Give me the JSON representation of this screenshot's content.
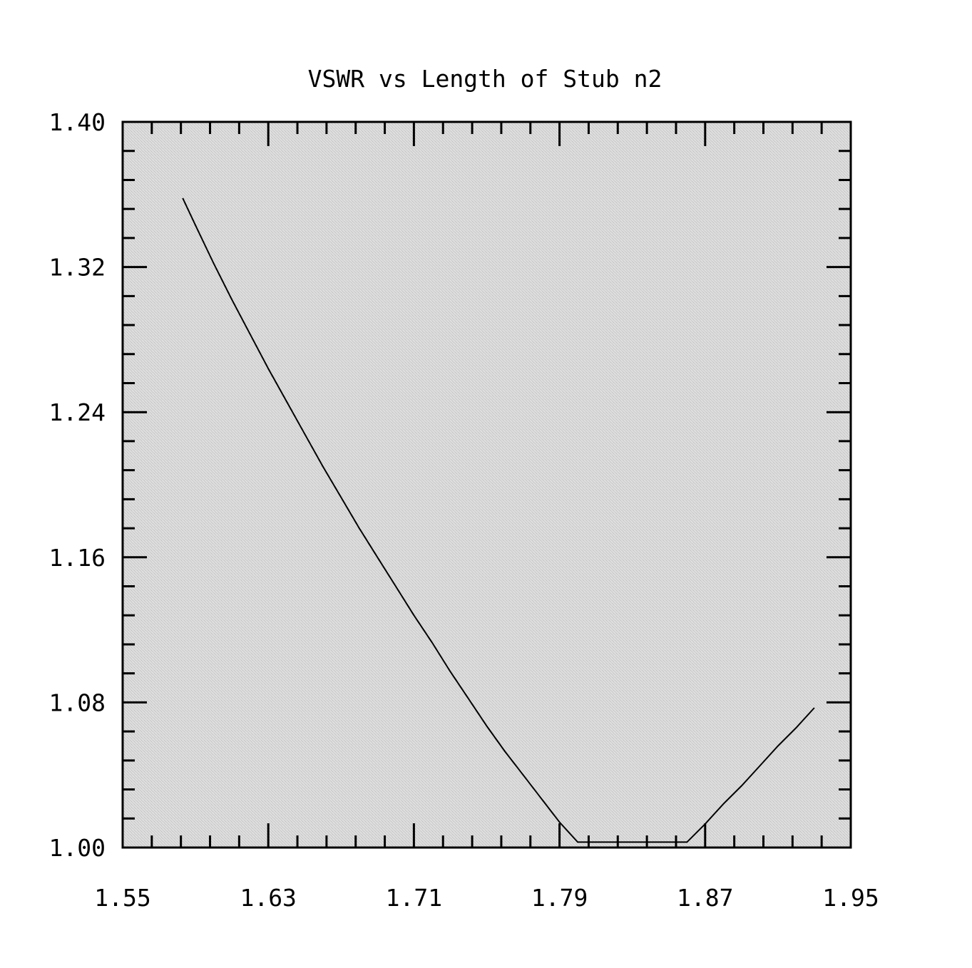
{
  "chart_data": {
    "type": "line",
    "title": "VSWR vs Length of Stub n2",
    "xlabel": "",
    "ylabel": "",
    "xlim": [
      1.55,
      1.95
    ],
    "ylim": [
      1.0,
      1.4
    ],
    "x_ticks": [
      "1.55",
      "1.63",
      "1.71",
      "1.79",
      "1.87",
      "1.95"
    ],
    "y_ticks": [
      "1.00",
      "1.08",
      "1.16",
      "1.24",
      "1.32",
      "1.40"
    ],
    "grid": false,
    "legend": "none",
    "series": [
      {
        "color": "#000000",
        "x": [
          1.583,
          1.59,
          1.6,
          1.61,
          1.62,
          1.63,
          1.64,
          1.65,
          1.66,
          1.67,
          1.68,
          1.69,
          1.7,
          1.71,
          1.72,
          1.73,
          1.74,
          1.75,
          1.76,
          1.77,
          1.78,
          1.79,
          1.8,
          1.81,
          1.82,
          1.8285,
          1.835,
          1.84,
          1.85,
          1.86,
          1.87,
          1.88,
          1.89,
          1.9,
          1.91,
          1.92,
          1.93
        ],
        "y": [
          1.358,
          1.343,
          1.322,
          1.302,
          1.283,
          1.264,
          1.246,
          1.228,
          1.21,
          1.193,
          1.176,
          1.16,
          1.144,
          1.128,
          1.113,
          1.097,
          1.082,
          1.067,
          1.053,
          1.04,
          1.027,
          1.014,
          1.002,
          0.99,
          0.979,
          0.971,
          0.977,
          0.982,
          0.992,
          1.003,
          1.013,
          1.024,
          1.034,
          1.045,
          1.056,
          1.066,
          1.077
        ]
      }
    ]
  }
}
